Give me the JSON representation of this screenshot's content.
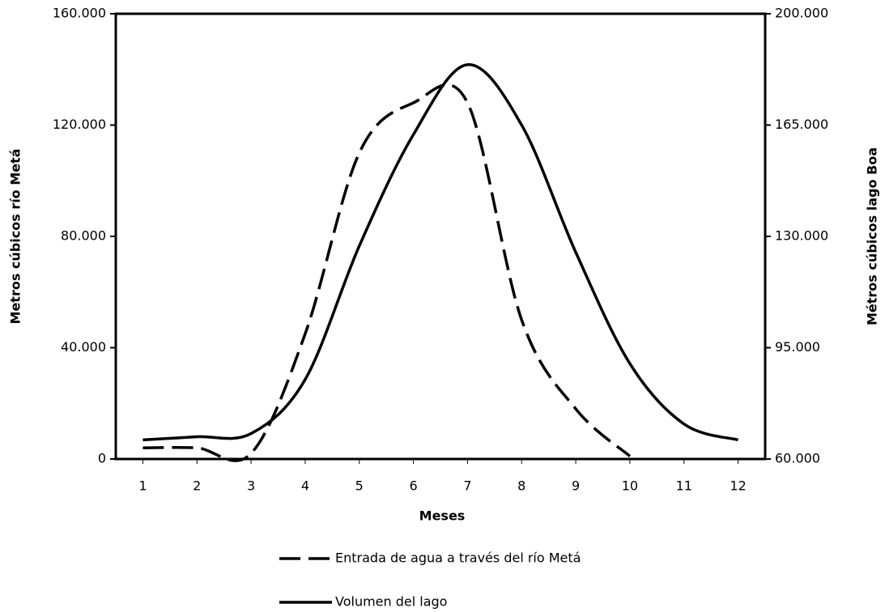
{
  "chart_data": {
    "type": "line",
    "x_label": "Meses",
    "y_label": "Metros cúbicos río Metá",
    "y2_label": "Métros cúbicos lago Boa",
    "x": [
      1,
      2,
      3,
      4,
      5,
      6,
      7,
      8,
      9,
      10,
      11,
      12
    ],
    "xlim": [
      0.5,
      12.5
    ],
    "xticks": [
      1,
      2,
      3,
      4,
      5,
      6,
      7,
      8,
      9,
      10,
      11,
      12
    ],
    "ylim": [
      0,
      160000
    ],
    "yticks": [
      0,
      {
        "value": 40000,
        "label": "40.000"
      },
      {
        "value": 80000,
        "label": "80.000"
      },
      {
        "value": 120000,
        "label": "120.000"
      },
      {
        "value": 160000,
        "label": "160.000"
      }
    ],
    "y2lim": [
      60000,
      200000
    ],
    "y2ticks": [
      {
        "value": 60000,
        "label": "60.000"
      },
      {
        "value": 95000,
        "label": "95.000"
      },
      {
        "value": 130000,
        "label": "130.000"
      },
      {
        "value": 165000,
        "label": "165.000"
      },
      {
        "value": 200000,
        "label": "200.000"
      }
    ],
    "grid": false,
    "series": [
      {
        "name": "Entrada de agua a través del río Metá",
        "color": "#000000",
        "dash": true,
        "values": [
          4000,
          4000,
          2000,
          45000,
          110000,
          128000,
          128000,
          50000,
          18000,
          1000,
          null,
          null
        ]
      },
      {
        "name": "Volumen del lago",
        "color": "#000000",
        "dash": false,
        "axis": "y2",
        "values": [
          66000,
          67000,
          68000,
          85000,
          127000,
          162000,
          184000,
          165000,
          125000,
          90000,
          71000,
          66000
        ]
      }
    ]
  }
}
